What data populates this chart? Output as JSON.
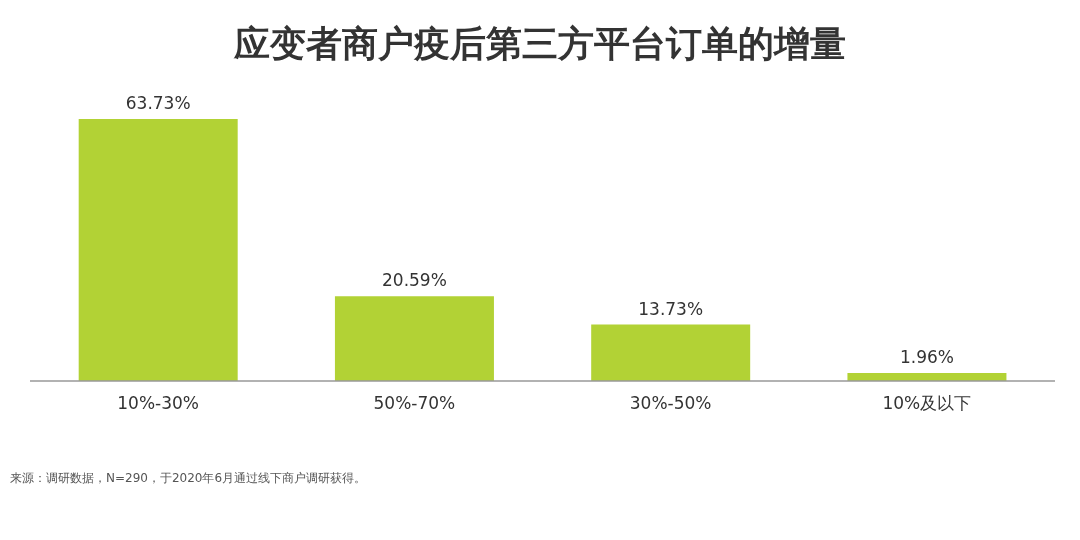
{
  "chart_data": {
    "type": "bar",
    "title": "应变者商户疫后第三方平台订单的增量",
    "categories": [
      "10%-30%",
      "50%-70%",
      "30%-50%",
      "10%及以下"
    ],
    "values": [
      63.73,
      20.59,
      13.73,
      1.96
    ],
    "value_labels": [
      "63.73%",
      "20.59%",
      "13.73%",
      "1.96%"
    ],
    "color": "#b2d235",
    "annotations": [
      "来源：调研数据，N=290，于2020年6月通过线下商户调研获得。"
    ]
  }
}
